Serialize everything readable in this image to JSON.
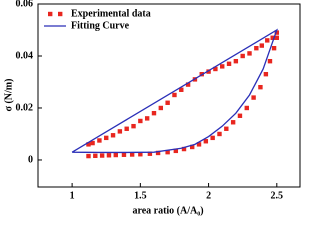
{
  "chart_data": {
    "type": "scatter",
    "xlabel": "area ratio (A/A₀)",
    "ylabel": "σ (N/m)",
    "xlim": [
      0.75,
      2.67
    ],
    "ylim": [
      -0.0104,
      0.06
    ],
    "xticks": [
      1,
      1.5,
      2,
      2.5
    ],
    "yticks": [
      0,
      0.02,
      0.04,
      0.06
    ],
    "legend": "upper-left",
    "series": [
      {
        "name": "Experimental data",
        "type": "scatter",
        "color": "#e8261f",
        "x": [
          1.12,
          1.17,
          1.22,
          1.27,
          1.32,
          1.38,
          1.44,
          1.5,
          1.57,
          1.63,
          1.7,
          1.76,
          1.82,
          1.88,
          1.93,
          1.98,
          2.03,
          2.08,
          2.13,
          2.18,
          2.23,
          2.28,
          2.33,
          2.38,
          2.42,
          2.45,
          2.48,
          2.5,
          2.5,
          2.47,
          2.43,
          2.39,
          2.35,
          2.3,
          2.25,
          2.2,
          2.15,
          2.1,
          2.05,
          2.0,
          1.95,
          1.9,
          1.85,
          1.8,
          1.75,
          1.7,
          1.65,
          1.6,
          1.55,
          1.5,
          1.45,
          1.4,
          1.35,
          1.3,
          1.25,
          1.2,
          1.15,
          1.12
        ],
        "values": [
          0.0015,
          0.0016,
          0.0017,
          0.0018,
          0.0019,
          0.002,
          0.0021,
          0.0022,
          0.0024,
          0.0027,
          0.003,
          0.0035,
          0.0042,
          0.005,
          0.006,
          0.0072,
          0.0085,
          0.01,
          0.012,
          0.0145,
          0.017,
          0.02,
          0.024,
          0.028,
          0.033,
          0.038,
          0.043,
          0.047,
          0.049,
          0.047,
          0.046,
          0.044,
          0.043,
          0.041,
          0.04,
          0.038,
          0.037,
          0.036,
          0.035,
          0.034,
          0.033,
          0.031,
          0.029,
          0.027,
          0.025,
          0.022,
          0.02,
          0.018,
          0.016,
          0.015,
          0.013,
          0.012,
          0.011,
          0.0095,
          0.0085,
          0.0075,
          0.0065,
          0.006
        ]
      },
      {
        "name": "Fitting Curve",
        "type": "line",
        "color": "#2a2fb8",
        "x": [
          1,
          1.2,
          1.4,
          1.6,
          1.8,
          1.9,
          2,
          2.1,
          2.2,
          2.3,
          2.4,
          2.5,
          1
        ],
        "values": [
          0.003,
          0.0029,
          0.0029,
          0.003,
          0.0045,
          0.006,
          0.009,
          0.013,
          0.018,
          0.025,
          0.035,
          0.05,
          0.003
        ]
      }
    ]
  }
}
